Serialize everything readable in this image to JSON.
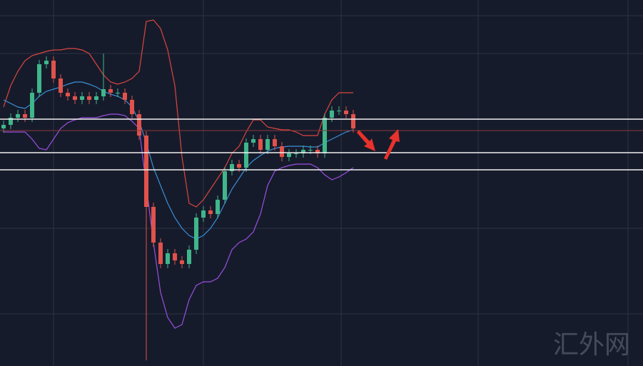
{
  "watermark": "汇外网",
  "chart_data": {
    "type": "candlestick",
    "ylim": [
      0,
      513
    ],
    "up_color": "#3fb68b",
    "down_color": "#e0524b",
    "open": [
      333,
      338,
      348,
      353,
      348,
      383,
      423,
      428,
      403,
      383,
      378,
      373,
      378,
      373,
      378,
      388,
      383,
      383,
      373,
      353,
      323,
      223,
      173,
      143,
      158,
      148,
      143,
      163,
      208,
      218,
      213,
      233,
      273,
      283,
      278,
      313,
      318,
      303,
      318,
      308,
      293,
      298,
      298,
      303,
      303,
      298,
      348,
      358,
      358,
      353
    ],
    "high": [
      344,
      354,
      359,
      359,
      389,
      429,
      434,
      434,
      409,
      389,
      384,
      384,
      384,
      384,
      438,
      394,
      389,
      389,
      379,
      359,
      329,
      229,
      179,
      164,
      164,
      154,
      169,
      214,
      224,
      224,
      239,
      279,
      289,
      289,
      319,
      324,
      324,
      324,
      324,
      314,
      304,
      304,
      309,
      309,
      309,
      354,
      364,
      364,
      364,
      359
    ],
    "low": [
      327,
      332,
      342,
      342,
      342,
      377,
      417,
      397,
      377,
      372,
      367,
      367,
      367,
      367,
      372,
      377,
      377,
      367,
      347,
      317,
      8,
      167,
      137,
      137,
      142,
      137,
      137,
      157,
      202,
      207,
      207,
      227,
      267,
      272,
      272,
      307,
      297,
      297,
      302,
      287,
      287,
      292,
      292,
      297,
      292,
      292,
      342,
      352,
      347,
      327
    ],
    "close": [
      338,
      348,
      353,
      348,
      383,
      423,
      428,
      403,
      383,
      378,
      373,
      378,
      373,
      378,
      388,
      383,
      383,
      373,
      353,
      323,
      223,
      173,
      143,
      158,
      148,
      143,
      163,
      208,
      218,
      213,
      233,
      273,
      283,
      278,
      313,
      318,
      303,
      318,
      308,
      293,
      298,
      298,
      303,
      303,
      298,
      348,
      358,
      358,
      353,
      333
    ],
    "bands": [
      {
        "color": "#d9473f",
        "values": [
          363,
          393,
          413,
          428,
          435,
          438,
          441,
          443,
          443,
          445,
          445,
          443,
          438,
          423,
          408,
          398,
          395,
          398,
          403,
          413,
          483,
          485,
          473,
          443,
          393,
          293,
          228,
          223,
          233,
          248,
          263,
          278,
          298,
          308,
          328,
          345,
          345,
          335,
          333,
          331,
          331,
          328,
          323,
          323,
          323,
          353,
          373,
          383,
          383,
          383
        ]
      },
      {
        "color": "#3a8fd9",
        "values": [
          373,
          368,
          363,
          361,
          368,
          378,
          385,
          388,
          391,
          395,
          398,
          398,
          395,
          391,
          385,
          381,
          378,
          373,
          363,
          343,
          313,
          278,
          253,
          228,
          208,
          193,
          183,
          178,
          183,
          193,
          208,
          228,
          248,
          263,
          278,
          288,
          295,
          301,
          305,
          307,
          308,
          308,
          308,
          307,
          307,
          313,
          318,
          323,
          328,
          331
        ]
      },
      {
        "color": "#9b4fe0",
        "values": [
          328,
          328,
          328,
          328,
          318,
          305,
          303,
          318,
          333,
          341,
          345,
          348,
          348,
          348,
          351,
          353,
          353,
          351,
          343,
          333,
          253,
          173,
          103,
          68,
          53,
          58,
          93,
          113,
          118,
          118,
          123,
          138,
          163,
          173,
          178,
          188,
          213,
          253,
          273,
          278,
          281,
          283,
          283,
          283,
          278,
          268,
          261,
          265,
          271,
          278
        ]
      }
    ]
  }
}
